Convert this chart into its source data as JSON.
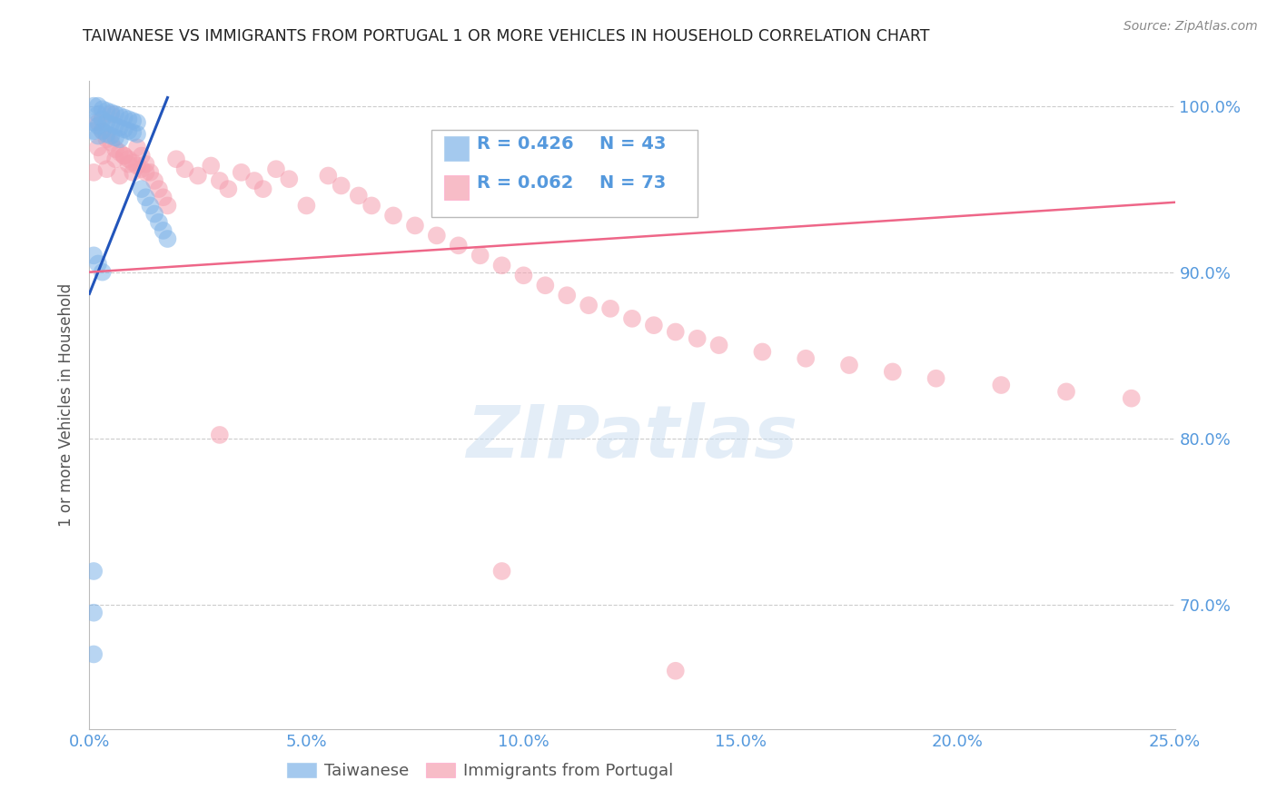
{
  "title": "TAIWANESE VS IMMIGRANTS FROM PORTUGAL 1 OR MORE VEHICLES IN HOUSEHOLD CORRELATION CHART",
  "source": "Source: ZipAtlas.com",
  "ylabel": "1 or more Vehicles in Household",
  "watermark": "ZIPatlas",
  "legend_blue_r": "0.426",
  "legend_blue_n": "43",
  "legend_pink_r": "0.062",
  "legend_pink_n": "73",
  "blue_color": "#7EB3E8",
  "pink_color": "#F5A0B0",
  "line_blue": "#2255BB",
  "line_pink": "#EE6688",
  "title_color": "#222222",
  "tick_color": "#5599DD",
  "ylabel_color": "#555555",
  "blue_scatter_x": [
    0.001,
    0.001,
    0.001,
    0.002,
    0.002,
    0.002,
    0.002,
    0.003,
    0.003,
    0.003,
    0.004,
    0.004,
    0.004,
    0.005,
    0.005,
    0.005,
    0.006,
    0.006,
    0.006,
    0.007,
    0.007,
    0.007,
    0.008,
    0.008,
    0.009,
    0.009,
    0.01,
    0.01,
    0.011,
    0.011,
    0.012,
    0.013,
    0.014,
    0.015,
    0.016,
    0.017,
    0.018,
    0.001,
    0.002,
    0.003,
    0.001,
    0.001,
    0.001
  ],
  "blue_scatter_y": [
    1.0,
    0.99,
    0.985,
    1.0,
    0.995,
    0.988,
    0.982,
    0.998,
    0.992,
    0.985,
    0.997,
    0.99,
    0.983,
    0.996,
    0.989,
    0.982,
    0.995,
    0.988,
    0.981,
    0.994,
    0.987,
    0.98,
    0.993,
    0.986,
    0.992,
    0.985,
    0.991,
    0.984,
    0.99,
    0.983,
    0.95,
    0.945,
    0.94,
    0.935,
    0.93,
    0.925,
    0.92,
    0.91,
    0.905,
    0.9,
    0.72,
    0.695,
    0.67
  ],
  "pink_scatter_x": [
    0.001,
    0.002,
    0.003,
    0.004,
    0.005,
    0.006,
    0.007,
    0.008,
    0.009,
    0.01,
    0.011,
    0.012,
    0.013,
    0.014,
    0.015,
    0.016,
    0.017,
    0.018,
    0.02,
    0.022,
    0.025,
    0.028,
    0.03,
    0.032,
    0.035,
    0.038,
    0.04,
    0.043,
    0.046,
    0.05,
    0.055,
    0.058,
    0.062,
    0.065,
    0.07,
    0.075,
    0.08,
    0.085,
    0.09,
    0.095,
    0.1,
    0.105,
    0.11,
    0.115,
    0.12,
    0.125,
    0.13,
    0.135,
    0.14,
    0.145,
    0.155,
    0.165,
    0.175,
    0.185,
    0.195,
    0.21,
    0.225,
    0.24,
    0.002,
    0.003,
    0.004,
    0.005,
    0.006,
    0.007,
    0.008,
    0.009,
    0.01,
    0.011,
    0.012,
    0.013,
    0.03,
    0.095,
    0.135
  ],
  "pink_scatter_y": [
    0.96,
    0.975,
    0.97,
    0.962,
    0.995,
    0.968,
    0.958,
    0.97,
    0.965,
    0.96,
    0.975,
    0.97,
    0.965,
    0.96,
    0.955,
    0.95,
    0.945,
    0.94,
    0.968,
    0.962,
    0.958,
    0.964,
    0.955,
    0.95,
    0.96,
    0.955,
    0.95,
    0.962,
    0.956,
    0.94,
    0.958,
    0.952,
    0.946,
    0.94,
    0.934,
    0.928,
    0.922,
    0.916,
    0.91,
    0.904,
    0.898,
    0.892,
    0.886,
    0.88,
    0.878,
    0.872,
    0.868,
    0.864,
    0.86,
    0.856,
    0.852,
    0.848,
    0.844,
    0.84,
    0.836,
    0.832,
    0.828,
    0.824,
    0.99,
    0.985,
    0.98,
    0.978,
    0.974,
    0.972,
    0.97,
    0.968,
    0.966,
    0.964,
    0.962,
    0.96,
    0.802,
    0.72,
    0.66
  ],
  "xlim": [
    0.0,
    0.25
  ],
  "ylim": [
    0.625,
    1.015
  ],
  "yticks": [
    0.7,
    0.8,
    0.9,
    1.0
  ],
  "xticks": [
    0.0,
    0.05,
    0.1,
    0.15,
    0.2,
    0.25
  ],
  "blue_line_x0": 0.0,
  "blue_line_x1": 0.018,
  "blue_line_y0": 0.887,
  "blue_line_y1": 1.005,
  "pink_line_x0": 0.0,
  "pink_line_x1": 0.25,
  "pink_line_y0": 0.9,
  "pink_line_y1": 0.942
}
